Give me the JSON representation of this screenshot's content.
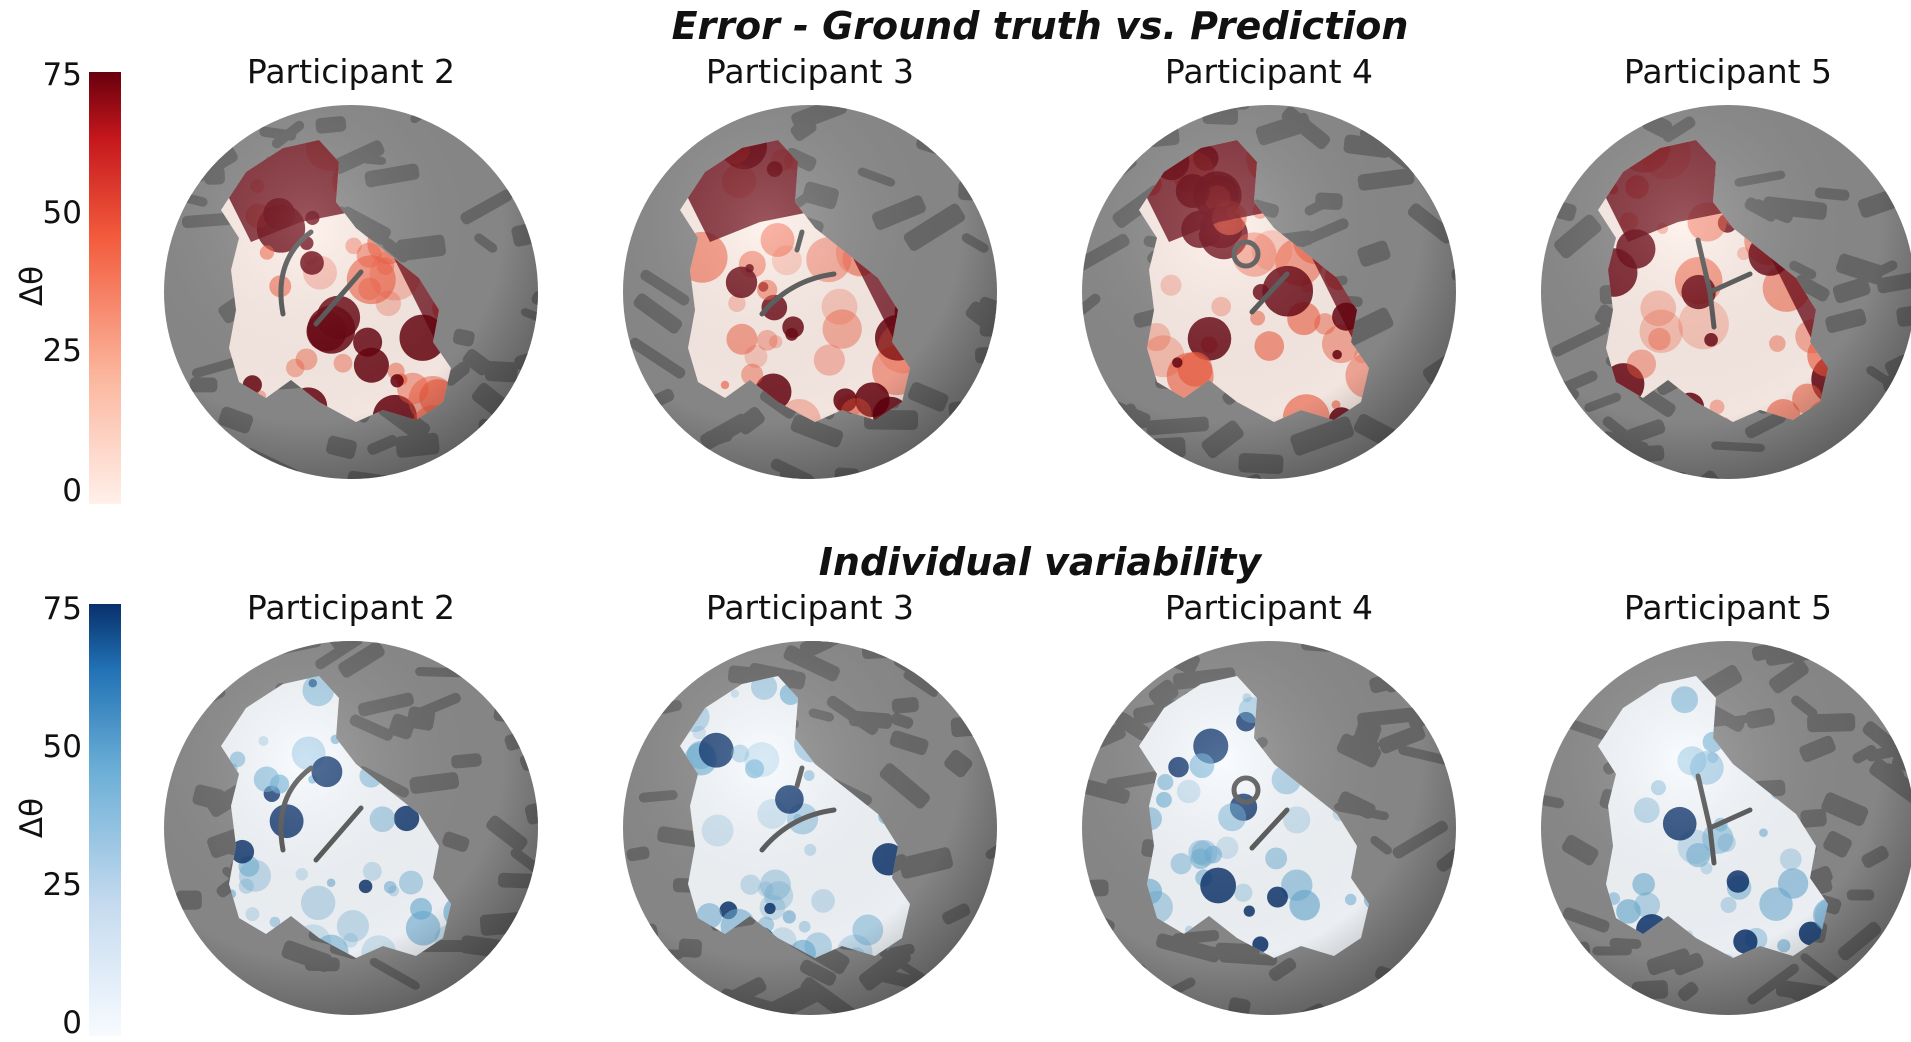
{
  "rows": [
    {
      "title": "Error - Ground truth vs. Prediction",
      "colorbar": {
        "label": "Δθ",
        "ticks": [
          "75",
          "50",
          "25",
          "0"
        ],
        "colormap": "red"
      },
      "colors": {
        "low": "#fff0ea",
        "mid": "#f35a3c",
        "high": "#67000d"
      },
      "panels": [
        {
          "title": "Participant 2",
          "marker": "arc-line"
        },
        {
          "title": "Participant 3",
          "marker": "dash-arc"
        },
        {
          "title": "Participant 4",
          "marker": "circle-line"
        },
        {
          "title": "Participant 5",
          "marker": "y-shape"
        }
      ]
    },
    {
      "title": "Individual variability",
      "colorbar": {
        "label": "Δθ",
        "ticks": [
          "75",
          "50",
          "25",
          "0"
        ],
        "colormap": "blue"
      },
      "colors": {
        "low": "#f7fbff",
        "mid": "#6aaed6",
        "high": "#08306b"
      },
      "panels": [
        {
          "title": "Participant 2",
          "marker": "arc-line"
        },
        {
          "title": "Participant 3",
          "marker": "dash-arc"
        },
        {
          "title": "Participant 4",
          "marker": "circle-line"
        },
        {
          "title": "Participant 5",
          "marker": "y-shape"
        }
      ]
    }
  ]
}
